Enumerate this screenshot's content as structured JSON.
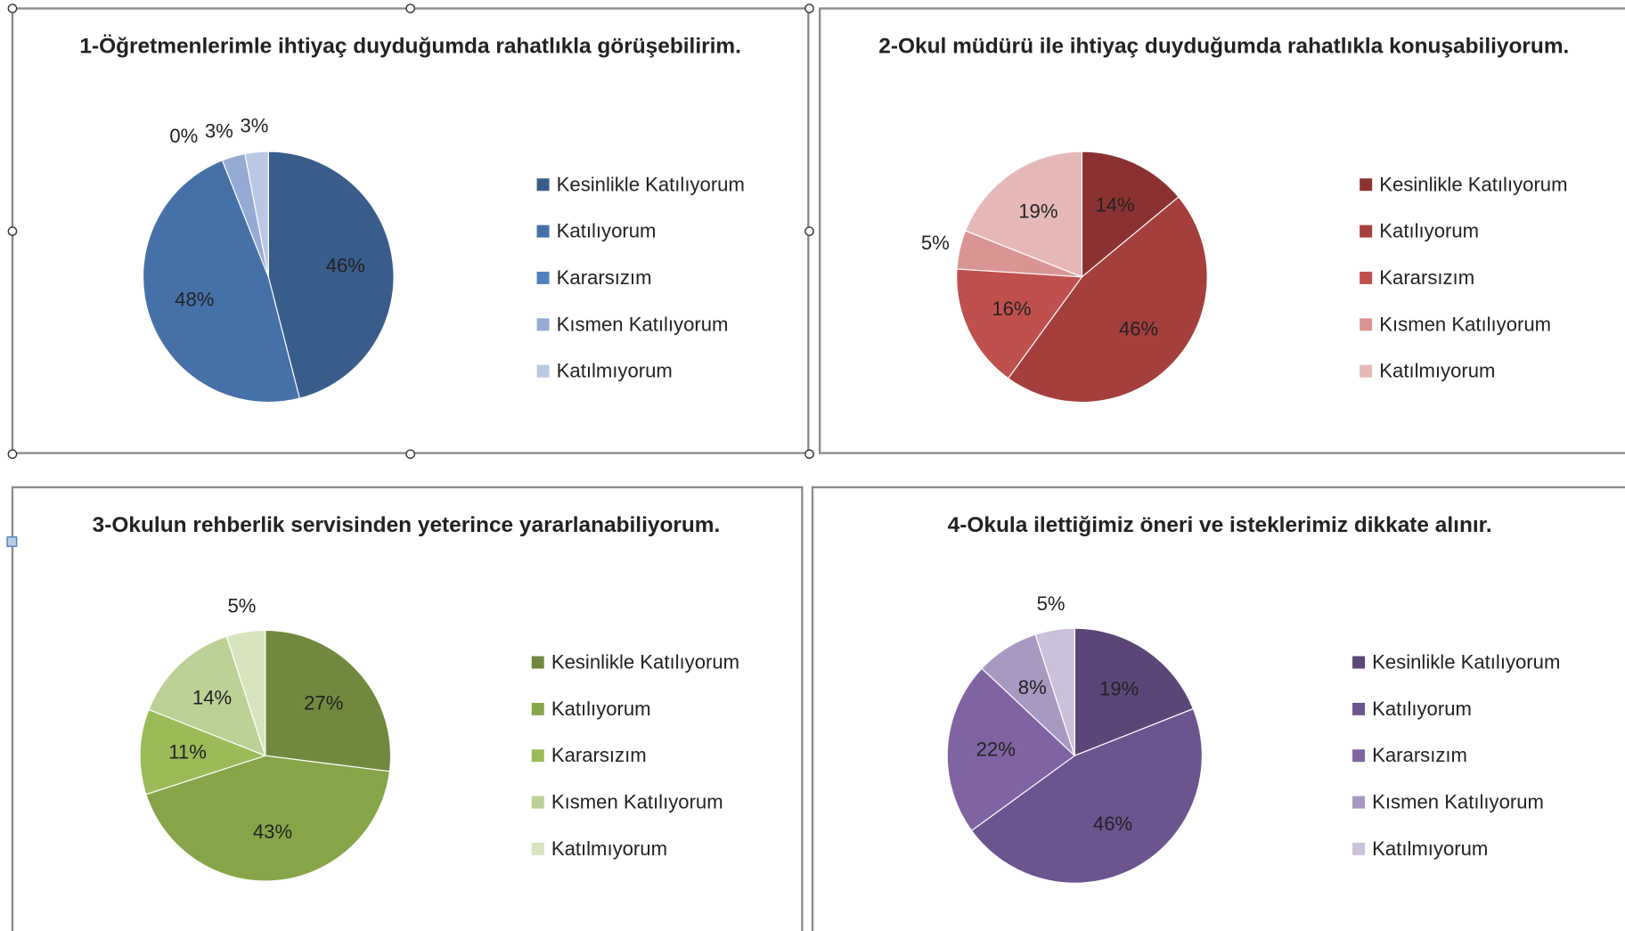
{
  "chart_data": [
    {
      "type": "pie",
      "title": "1-Öğretmenlerimle ihtiyaç duyduğumda rahatlıkla görüşebilirim.",
      "categories": [
        "Kesinlikle Katılıyorum",
        "Katılıyorum",
        "Kararsızım",
        "Kısmen Katılıyorum",
        "Katılmıyorum"
      ],
      "values": [
        46,
        48,
        0,
        3,
        3
      ],
      "value_labels": [
        "46%",
        "48%",
        "0%",
        "3%",
        "3%"
      ],
      "colors": [
        "#385d8a",
        "#4671a8",
        "#4f81bd",
        "#95abd3",
        "#bac8e3"
      ]
    },
    {
      "type": "pie",
      "title": "2-Okul müdürü ile ihtiyaç duyduğumda rahatlıkla konuşabiliyorum.",
      "categories": [
        "Kesinlikle Katılıyorum",
        "Katılıyorum",
        "Kararsızım",
        "Kısmen Katılıyorum",
        "Katılmıyorum"
      ],
      "values": [
        14,
        46,
        16,
        5,
        19
      ],
      "value_labels": [
        "14%",
        "46%",
        "16%",
        "5%",
        "19%"
      ],
      "colors": [
        "#8c3131",
        "#a53f3c",
        "#c0504d",
        "#d99594",
        "#e6b9b8"
      ]
    },
    {
      "type": "pie",
      "title": "3-Okulun rehberlik servisinden yeterince yararlanabiliyorum.",
      "categories": [
        "Kesinlikle Katılıyorum",
        "Katılıyorum",
        "Kararsızım",
        "Kısmen Katılıyorum",
        "Katılmıyorum"
      ],
      "values": [
        27,
        43,
        11,
        14,
        5
      ],
      "value_labels": [
        "27%",
        "43%",
        "11%",
        "14%",
        "5%"
      ],
      "colors": [
        "#71893f",
        "#86a549",
        "#9bbb59",
        "#bcd195",
        "#d7e4bd"
      ]
    },
    {
      "type": "pie",
      "title": "4-Okula ilettiğimiz öneri ve isteklerimiz dikkate alınır.",
      "categories": [
        "Kesinlikle Katılıyorum",
        "Katılıyorum",
        "Kararsızım",
        "Kısmen Katılıyorum",
        "Katılmıyorum"
      ],
      "values": [
        19,
        46,
        22,
        8,
        5
      ],
      "value_labels": [
        "19%",
        "46%",
        "22%",
        "8%",
        "5%"
      ],
      "colors": [
        "#5c4678",
        "#6c548e",
        "#8064a2",
        "#a898c2",
        "#ccc1da"
      ]
    }
  ]
}
